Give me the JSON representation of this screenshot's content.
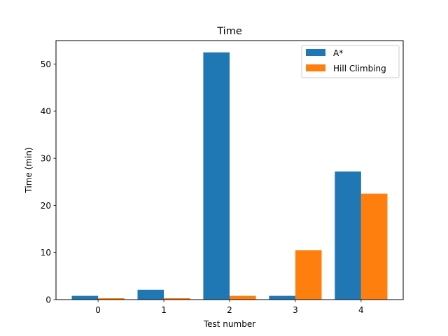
{
  "chart_data": {
    "type": "bar",
    "title": "Time",
    "xlabel": "Test number",
    "ylabel": "Time (min)",
    "categories": [
      "0",
      "1",
      "2",
      "3",
      "4"
    ],
    "series": [
      {
        "name": "A*",
        "color": "#1f77b4",
        "values": [
          0.8,
          2.1,
          52.5,
          0.8,
          27.2
        ]
      },
      {
        "name": "Hill Climbing",
        "color": "#ff7f0e",
        "values": [
          0.3,
          0.3,
          0.8,
          10.5,
          22.5
        ]
      }
    ],
    "ylim": [
      0,
      55
    ],
    "yticks": [
      0,
      10,
      20,
      30,
      40,
      50
    ],
    "grid": false,
    "legend_position": "top-right"
  }
}
